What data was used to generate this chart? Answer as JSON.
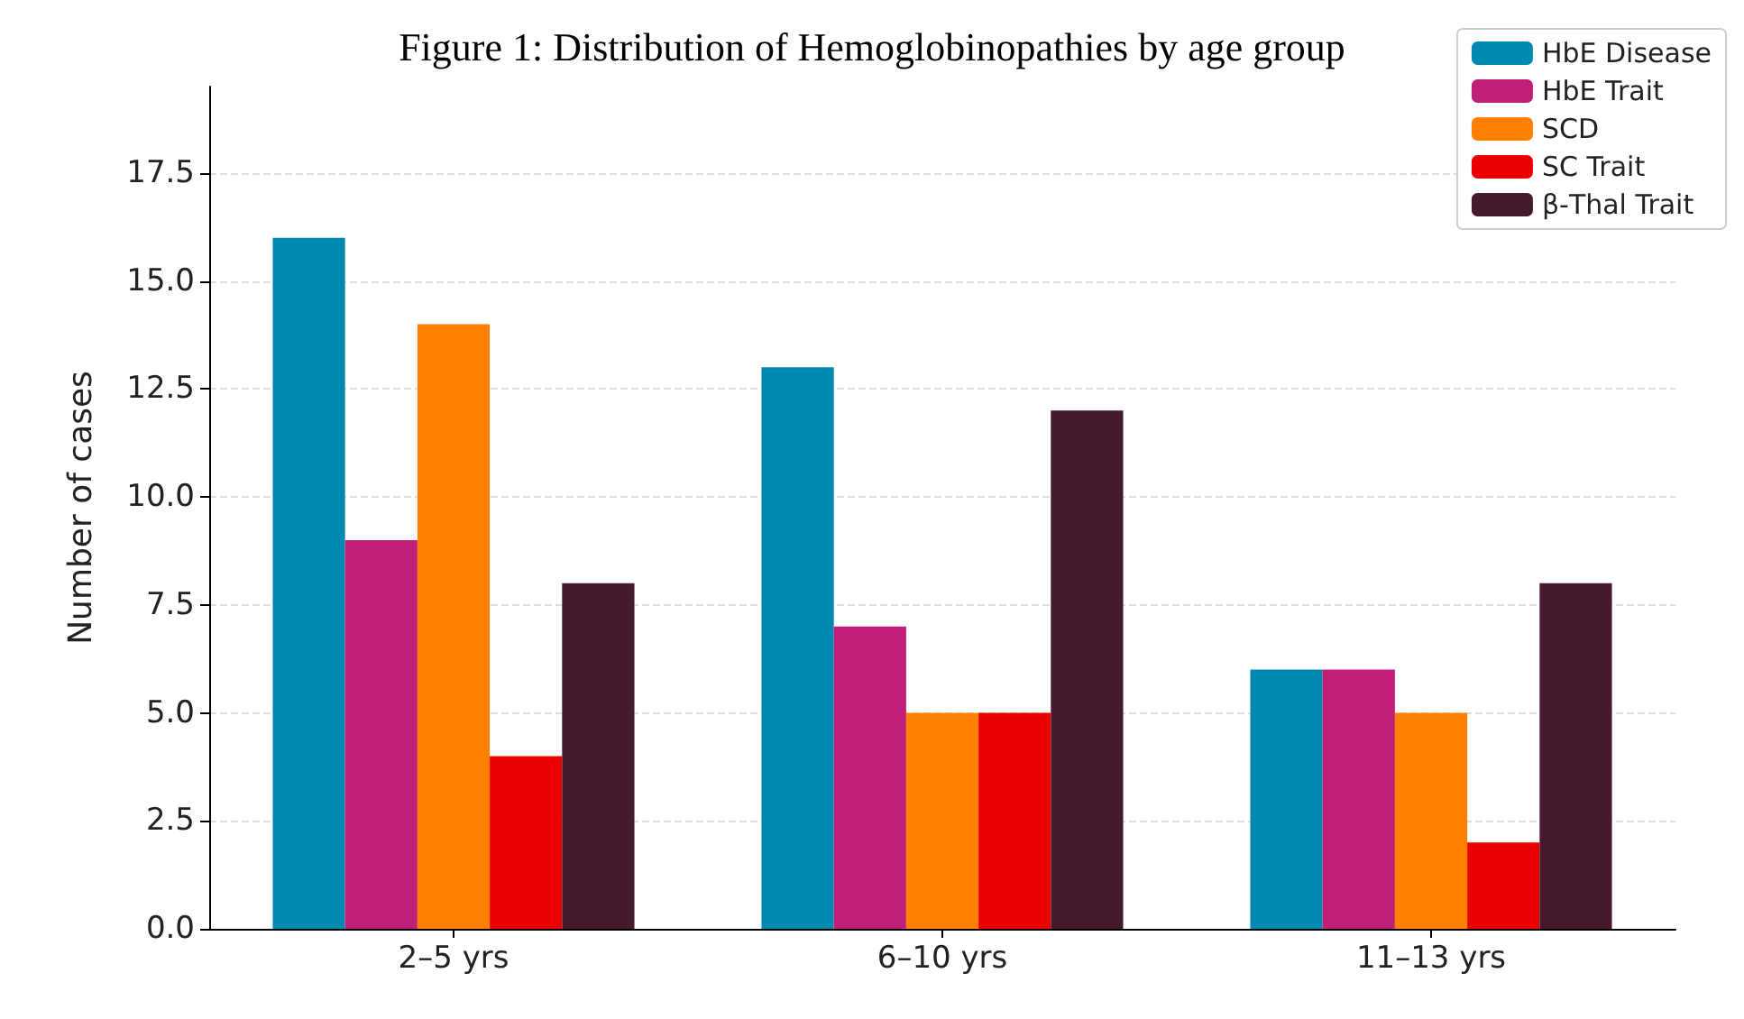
{
  "chart_data": {
    "type": "bar",
    "title": "Figure 1: Distribution of Hemoglobinopathies by age group",
    "ylabel": "Number of cases",
    "categories": [
      "2–5 yrs",
      "6–10 yrs",
      "11–13 yrs"
    ],
    "series": [
      {
        "name": "HbE Disease",
        "color": "#0089b0",
        "values": [
          16,
          13,
          6
        ]
      },
      {
        "name": "HbE Trait",
        "color": "#c01f78",
        "values": [
          9,
          7,
          6
        ]
      },
      {
        "name": "SCD",
        "color": "#ff8000",
        "values": [
          14,
          5,
          5
        ]
      },
      {
        "name": "SC Trait",
        "color": "#ea0000",
        "values": [
          4,
          5,
          2
        ]
      },
      {
        "name": "β-Thal Trait",
        "color": "#461a2e",
        "values": [
          8,
          12,
          8
        ]
      }
    ],
    "ylim": [
      0,
      19.5
    ],
    "yticks": [
      {
        "value": 0,
        "label": "0.0"
      },
      2.5,
      {
        "value": 5,
        "label": "5.0"
      },
      7.5,
      {
        "value": 10,
        "label": "10.0"
      },
      12.5,
      {
        "value": 15,
        "label": "15.0"
      },
      17.5
    ],
    "grid": "y",
    "legend": "top right"
  }
}
